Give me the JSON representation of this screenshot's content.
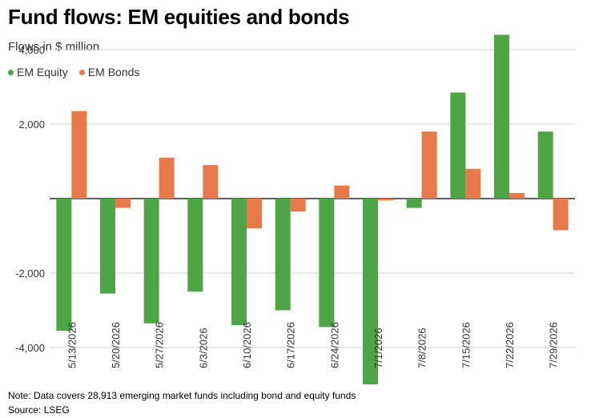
{
  "chart_data": {
    "type": "bar",
    "title": "Fund flows: EM equities and bonds",
    "subtitle": "Flows in $ million",
    "categories": [
      "5/13/2026",
      "5/20/2026",
      "5/27/2026",
      "6/3/2026",
      "6/10/2026",
      "6/17/2026",
      "6/24/2026",
      "7/1/2026",
      "7/8/2026",
      "7/15/2026",
      "7/22/2026",
      "7/29/2026"
    ],
    "series": [
      {
        "name": "EM Equity",
        "color": "#4ea545",
        "values": [
          -3550,
          -2550,
          -3350,
          -2500,
          -3400,
          -3000,
          -3450,
          -5150,
          -250,
          2850,
          4400,
          1800
        ]
      },
      {
        "name": "EM Bonds",
        "color": "#e8794a",
        "values": [
          2350,
          -250,
          1100,
          900,
          -800,
          -350,
          350,
          -50,
          1800,
          800,
          150,
          -850
        ]
      }
    ],
    "yticks": [
      4000,
      2000,
      0,
      -2000,
      -4000
    ],
    "ytick_labels": [
      "4,000",
      "2,000",
      "",
      "-2,000",
      "-4,000"
    ],
    "ylim": [
      -5150,
      4500
    ],
    "grid": true,
    "legend_position": "top-left"
  },
  "footer": {
    "note": "Note: Data covers 28,913 emerging market funds including bond and equity funds",
    "source": "Source: LSEG"
  }
}
